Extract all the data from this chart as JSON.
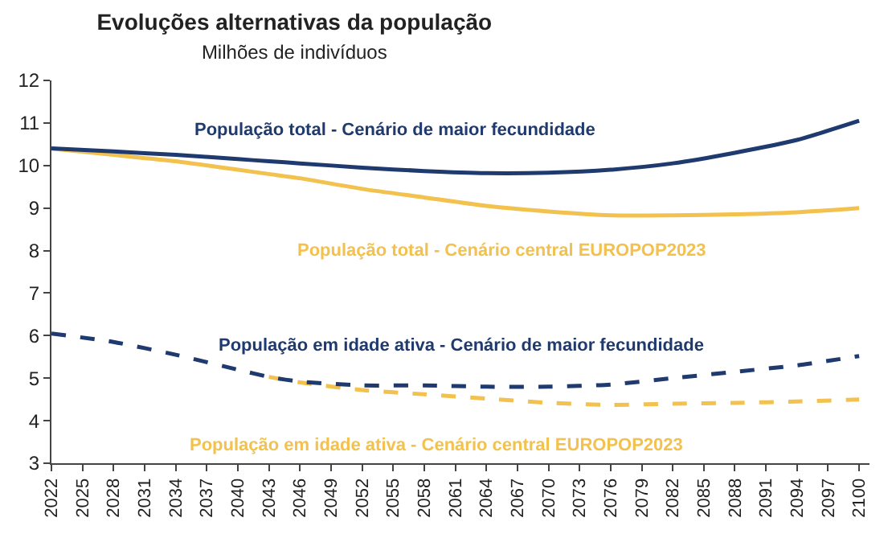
{
  "chart_data": {
    "type": "line",
    "title": "Evoluções alternativas da população",
    "subtitle": "Milhões de indivíduos",
    "x": [
      2022,
      2028,
      2034,
      2040,
      2043,
      2046,
      2052,
      2058,
      2064,
      2070,
      2076,
      2082,
      2088,
      2094,
      2100
    ],
    "series": [
      {
        "name": "População total - Cenário de maior fecundidade",
        "color": "#1f3a6e",
        "line_style": "solid",
        "values": [
          10.4,
          10.33,
          10.25,
          10.15,
          10.1,
          10.05,
          9.95,
          9.87,
          9.82,
          9.83,
          9.9,
          10.05,
          10.3,
          10.6,
          11.05
        ]
      },
      {
        "name": "População total - Cenário central EUROPOP2023",
        "color": "#f2c14e",
        "line_style": "solid",
        "values": [
          10.4,
          10.25,
          10.1,
          9.9,
          9.8,
          9.7,
          9.45,
          9.25,
          9.05,
          8.92,
          8.83,
          8.83,
          8.85,
          8.9,
          9.0
        ]
      },
      {
        "name": "População em idade ativa - Cenário de maior fecundidade",
        "color": "#1f3a6e",
        "line_style": "dashed",
        "values": [
          6.05,
          5.85,
          5.55,
          5.2,
          5.03,
          4.92,
          4.83,
          4.83,
          4.8,
          4.8,
          4.85,
          5.0,
          5.15,
          5.3,
          5.52
        ]
      },
      {
        "name": "População em idade ativa - Cenário central EUROPOP2023",
        "color": "#f2c14e",
        "line_style": "dashed",
        "values": [
          null,
          null,
          null,
          null,
          5.03,
          4.9,
          4.72,
          4.62,
          4.52,
          4.42,
          4.37,
          4.4,
          4.42,
          4.45,
          4.5
        ]
      }
    ],
    "xlim": [
      2022,
      2101
    ],
    "xticks": [
      2022,
      2025,
      2028,
      2031,
      2034,
      2037,
      2040,
      2043,
      2046,
      2049,
      2052,
      2055,
      2058,
      2061,
      2064,
      2067,
      2070,
      2073,
      2076,
      2079,
      2082,
      2085,
      2088,
      2091,
      2094,
      2097,
      2100
    ],
    "ylim": [
      3,
      12
    ],
    "yticks": [
      3,
      4,
      5,
      6,
      7,
      8,
      9,
      10,
      11,
      12
    ],
    "grid": false,
    "legend": false,
    "marker": "none"
  }
}
